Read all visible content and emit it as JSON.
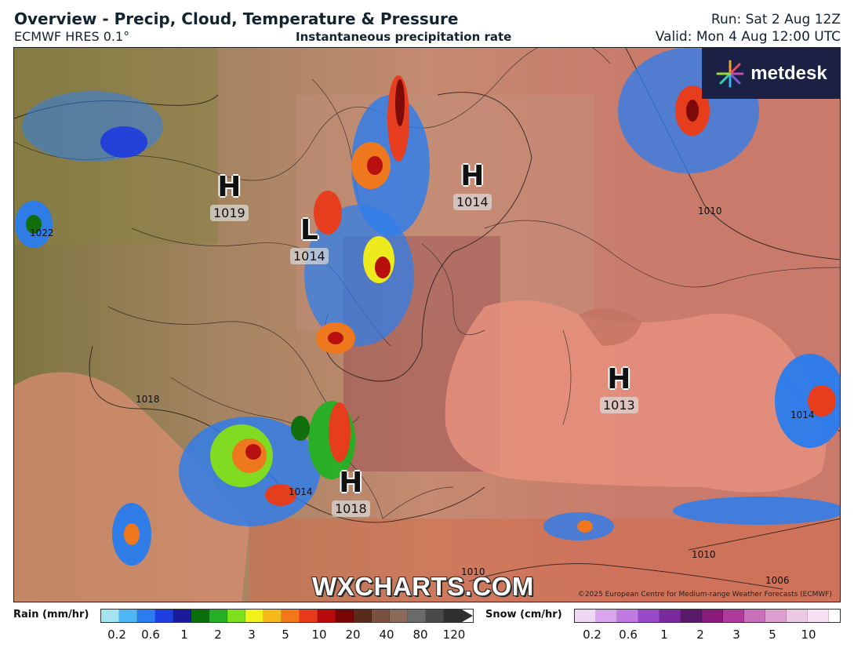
{
  "header": {
    "title": "Overview - Precip, Cloud, Temperature & Pressure",
    "model": "ECMWF HRES 0.1°",
    "center": "Instantaneous precipitation rate",
    "run": "Run: Sat 2 Aug 12Z",
    "valid": "Valid: Mon 4 Aug 12:00 UTC"
  },
  "logo": {
    "text": "metdesk"
  },
  "watermark": "WXCHARTS.COM",
  "copyright": "©2025 European Centre for Medium-range Weather Forecasts (ECMWF)",
  "pressure_centers": [
    {
      "letter": "H",
      "value": "1019"
    },
    {
      "letter": "L",
      "value": "1014"
    },
    {
      "letter": "H",
      "value": "1014"
    },
    {
      "letter": "H",
      "value": "1013"
    },
    {
      "letter": "H",
      "value": "1018"
    }
  ],
  "isobar_labels": [
    "1010",
    "1022",
    "1018",
    "1014",
    "1010",
    "1006",
    "1010",
    "1014"
  ],
  "legend": {
    "rain_label": "Rain (mm/hr)",
    "rain_ticks": [
      "0.2",
      "0.6",
      "1",
      "2",
      "3",
      "5",
      "10",
      "20",
      "40",
      "80",
      "120"
    ],
    "rain_colors": [
      "#a6e3f0",
      "#4db8f5",
      "#2a7df0",
      "#1f3fe0",
      "#1a1a9a",
      "#0a6e0a",
      "#24b024",
      "#7fe01e",
      "#f2f21a",
      "#f5b81a",
      "#f2781a",
      "#e83a1a",
      "#b80a0a",
      "#7a0505",
      "#5a2a1a",
      "#7a5040",
      "#8a6a58",
      "#6a6a6a",
      "#4a4a4a",
      "#303030"
    ],
    "snow_label": "Snow (cm/hr)",
    "snow_ticks": [
      "0.2",
      "0.6",
      "1",
      "2",
      "3",
      "5",
      "10"
    ],
    "snow_colors": [
      "#f0d8f5",
      "#d9a6ec",
      "#c07ae0",
      "#9a4ac8",
      "#7a2a9a",
      "#5a1a6a",
      "#8a1a7a",
      "#b03a9a",
      "#c870b8",
      "#dca0d0",
      "#ecc8e4",
      "#f6e0f2"
    ]
  }
}
